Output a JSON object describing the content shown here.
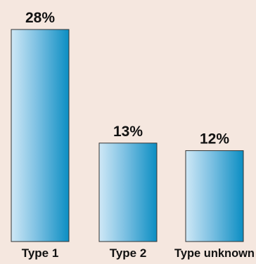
{
  "chart_data": {
    "type": "bar",
    "categories": [
      "Type 1",
      "Type 2",
      "Type unknown"
    ],
    "values": [
      28,
      13,
      12
    ],
    "value_labels": [
      "28%",
      "13%",
      "12%"
    ],
    "unit": "%",
    "title": "",
    "xlabel": "",
    "ylabel": "",
    "ylim": [
      0,
      28
    ],
    "grid": false,
    "legend": "none"
  },
  "colors": {
    "background": "#f5e7df",
    "bar_light": "#cfe8f6",
    "bar_dark": "#0b8ec3",
    "bar_outline": "#333333",
    "text": "#111111"
  }
}
